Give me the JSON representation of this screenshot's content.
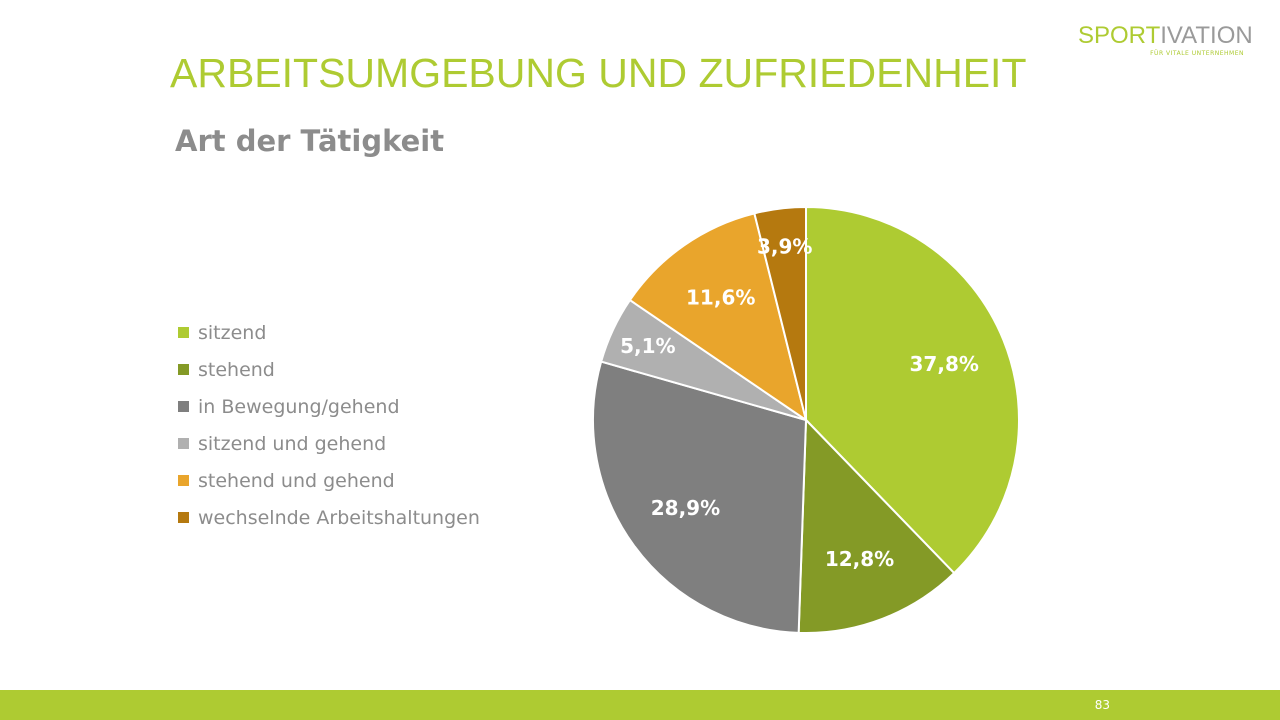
{
  "slide": {
    "title": "ARBEITSUMGEBUNG UND ZUFRIEDENHEIT",
    "page_number": "83",
    "logo": {
      "main": "SPORTIVATION",
      "main_part1": "SP",
      "main_part2": "ORT",
      "main_part3": "IVATION",
      "tagline": "FÜR VITALE UNTERNEHMEN"
    },
    "accent_color": "#AECB32"
  },
  "chart_data": {
    "type": "pie",
    "title": "Art der Tätigkeit",
    "legend_position": "left",
    "categories": [
      "sitzend",
      "stehend",
      "in Bewegung/gehend",
      "sitzend und gehend",
      "stehend und gehend",
      "wechselnde Arbeitshaltungen"
    ],
    "values": [
      37.8,
      12.8,
      28.9,
      5.1,
      11.6,
      3.9
    ],
    "labels": [
      "37,8%",
      "12,8%",
      "28,9%",
      "5,1%",
      "11,6%",
      "3,9%"
    ],
    "colors": [
      "#AECB32",
      "#849A26",
      "#7F7F7F",
      "#B0B0B0",
      "#E9A52C",
      "#B5790F"
    ],
    "start_angle_deg": 0,
    "direction": "clockwise"
  }
}
